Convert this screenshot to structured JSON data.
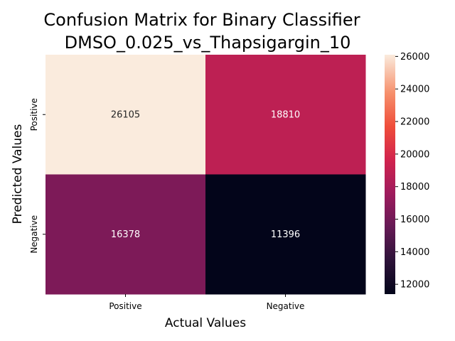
{
  "chart_data": {
    "type": "heatmap",
    "title_lines": [
      "Confusion Matrix for Binary Classifier",
      "DMSO_0.025_vs_Thapsigargin_10"
    ],
    "xlabel": "Actual Values",
    "ylabel": "Predicted Values",
    "x_categories": [
      "Positive",
      "Negative"
    ],
    "y_categories": [
      "Positive",
      "Negative"
    ],
    "values": [
      [
        26105,
        18810
      ],
      [
        16378,
        11396
      ]
    ],
    "value_labels": [
      [
        "26105",
        "18810"
      ],
      [
        "16378",
        "11396"
      ]
    ],
    "colormap": "rocket",
    "colorbar": {
      "vmin": 11396,
      "vmax": 26105,
      "ticks": [
        12000,
        14000,
        16000,
        18000,
        20000,
        22000,
        24000,
        26000
      ],
      "tick_labels": [
        "12000",
        "14000",
        "16000",
        "18000",
        "20000",
        "22000",
        "24000",
        "26000"
      ]
    }
  }
}
